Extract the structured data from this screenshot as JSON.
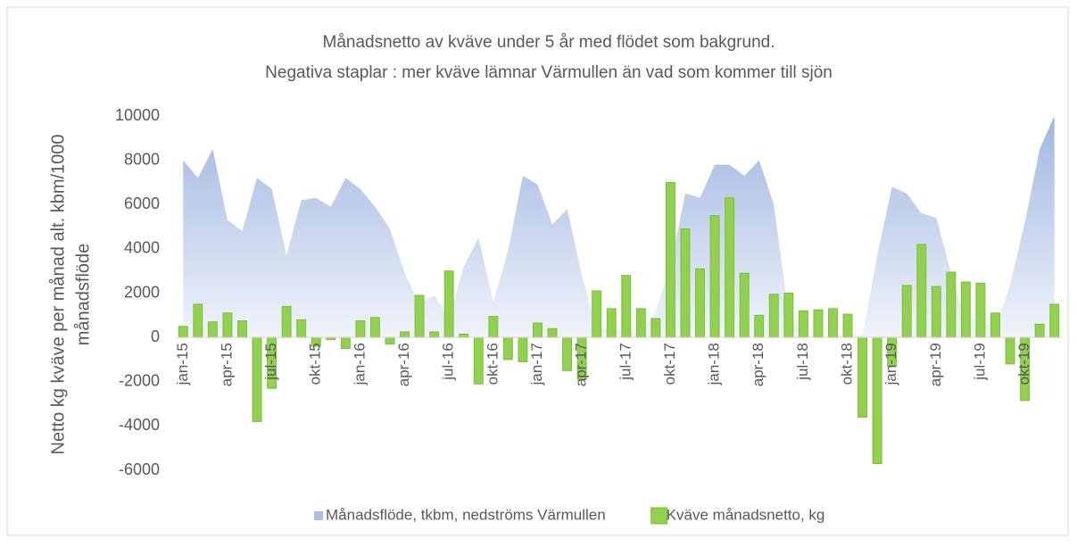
{
  "chart_data": {
    "type": "area_bar",
    "title": "Månadsnetto av kväve under 5 år med flödet som bakgrund.",
    "subtitle": "Negativa staplar : mer kväve lämnar Värmullen än vad som kommer till sjön",
    "y_label": [
      "Netto kg kväve per månad alt. kbm/1000",
      "månadsflöde"
    ],
    "categories": [
      "jan-15",
      null,
      null,
      "apr-15",
      null,
      null,
      "jul-15",
      null,
      null,
      "okt-15",
      null,
      null,
      "jan-16",
      null,
      null,
      "apr-16",
      null,
      null,
      "jul-16",
      null,
      null,
      "okt-16",
      null,
      null,
      "jan-17",
      null,
      null,
      "apr-17",
      null,
      null,
      "jul-17",
      null,
      null,
      "okt-17",
      null,
      null,
      "jan-18",
      null,
      null,
      "apr-18",
      null,
      null,
      "jul-18",
      null,
      null,
      "okt-18",
      null,
      null,
      "jan-19",
      null,
      null,
      "apr-19",
      null,
      null,
      "jul-19",
      null,
      null,
      "okt-19",
      null,
      null
    ],
    "series": [
      {
        "name": "Månadsflöde, tkbm, nedströms Värmullen",
        "kind": "area",
        "color": "#a9bfe6",
        "values": [
          8000,
          7200,
          8500,
          5300,
          4800,
          7200,
          6700,
          3700,
          6200,
          6300,
          5900,
          7200,
          6700,
          5900,
          4900,
          2900,
          1500,
          1900,
          900,
          3200,
          4500,
          1600,
          3900,
          7300,
          6900,
          5100,
          5800,
          2800,
          400,
          300,
          300,
          200,
          1200,
          3200,
          6500,
          6300,
          7800,
          7800,
          7300,
          8000,
          6000,
          1000,
          200,
          100,
          100,
          200,
          100,
          3700,
          6800,
          6500,
          5600,
          5400,
          2900,
          700,
          900,
          300,
          2400,
          5200,
          8500,
          10000
        ]
      },
      {
        "name": "Kväve månadsnetto, kg",
        "kind": "bar",
        "color": "#92d050",
        "values": [
          500,
          1500,
          700,
          1100,
          750,
          -3800,
          -2300,
          1400,
          800,
          -400,
          -100,
          -500,
          750,
          900,
          -300,
          250,
          1900,
          250,
          3000,
          150,
          -2100,
          950,
          -1000,
          -1100,
          650,
          400,
          -1500,
          -1900,
          2100,
          1300,
          2800,
          1300,
          850,
          7000,
          4900,
          3100,
          5500,
          6300,
          2900,
          1000,
          1950,
          2000,
          1200,
          1250,
          1300,
          1050,
          -3600,
          -5700,
          -1300,
          2350,
          4200,
          2300,
          2950,
          2500,
          2450,
          1100,
          -1200,
          -2850,
          600,
          1500
        ]
      }
    ],
    "ylim": [
      -6000,
      10000
    ],
    "yticks": [
      -6000,
      -4000,
      -2000,
      0,
      2000,
      4000,
      6000,
      8000,
      10000
    ],
    "grid": false,
    "legend": "bottom"
  }
}
